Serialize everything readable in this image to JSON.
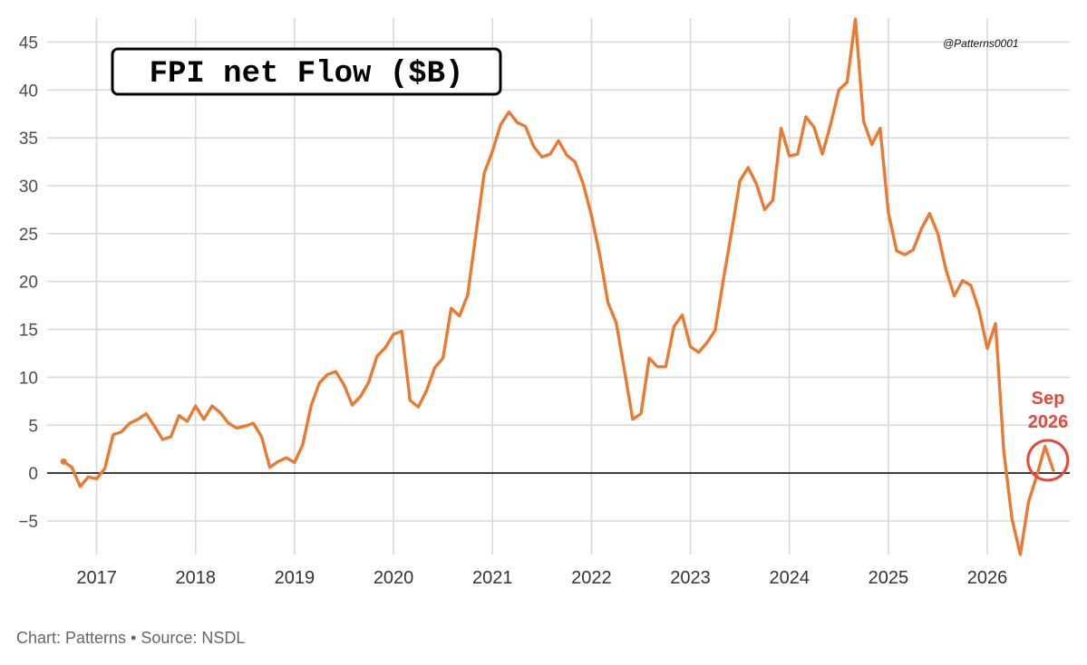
{
  "chart_data": {
    "type": "line",
    "title": "FPI net Flow ($B)",
    "watermark": "@Patterns0001",
    "footer": "Chart: Patterns • Source: NSDL",
    "annotation": {
      "line1": "Sep",
      "line2": "2026"
    },
    "xlabel": "",
    "ylabel": "",
    "x_tick_labels": [
      "2017",
      "2018",
      "2019",
      "2020",
      "2021",
      "2022",
      "2023",
      "2024",
      "2025",
      "2026"
    ],
    "y_ticks": [
      -5,
      0,
      5,
      10,
      15,
      20,
      25,
      30,
      35,
      40,
      45
    ],
    "ylim": [
      -8.5,
      47.5
    ],
    "xlim": [
      "2016-07",
      "2026-11"
    ],
    "grid": true,
    "colors": {
      "line": "#ea7a32",
      "annotation": "#e8473e",
      "grid": "#d9d9d9",
      "zero_line": "#222222"
    },
    "x": [
      "2016-09",
      "2016-10",
      "2016-11",
      "2016-12",
      "2017-01",
      "2017-02",
      "2017-03",
      "2017-04",
      "2017-05",
      "2017-06",
      "2017-07",
      "2017-08",
      "2017-09",
      "2017-10",
      "2017-11",
      "2017-12",
      "2018-01",
      "2018-02",
      "2018-03",
      "2018-04",
      "2018-05",
      "2018-06",
      "2018-07",
      "2018-08",
      "2018-09",
      "2018-10",
      "2018-11",
      "2018-12",
      "2019-01",
      "2019-02",
      "2019-03",
      "2019-04",
      "2019-05",
      "2019-06",
      "2019-07",
      "2019-08",
      "2019-09",
      "2019-10",
      "2019-11",
      "2019-12",
      "2020-01",
      "2020-02",
      "2020-03",
      "2020-04",
      "2020-05",
      "2020-06",
      "2020-07",
      "2020-08",
      "2020-09",
      "2020-10",
      "2020-11",
      "2020-12",
      "2021-01",
      "2021-02",
      "2021-03",
      "2021-04",
      "2021-05",
      "2021-06",
      "2021-07",
      "2021-08",
      "2021-09",
      "2021-10",
      "2021-11",
      "2021-12",
      "2022-01",
      "2022-02",
      "2022-03",
      "2022-04",
      "2022-05",
      "2022-06",
      "2022-07",
      "2022-08",
      "2022-09",
      "2022-10",
      "2022-11",
      "2022-12",
      "2023-01",
      "2023-02",
      "2023-03",
      "2023-04",
      "2023-05",
      "2023-06",
      "2023-07",
      "2023-08",
      "2023-09",
      "2023-10",
      "2023-11",
      "2023-12",
      "2024-01",
      "2024-02",
      "2024-03",
      "2024-04",
      "2024-05",
      "2024-06",
      "2024-07",
      "2024-08",
      "2024-09",
      "2024-10",
      "2024-11",
      "2024-12",
      "2025-01",
      "2025-02",
      "2025-03",
      "2025-04",
      "2025-05",
      "2025-06",
      "2025-07",
      "2025-08",
      "2025-09",
      "2025-10",
      "2025-11",
      "2025-12",
      "2026-01",
      "2026-02",
      "2026-03",
      "2026-04",
      "2026-05",
      "2026-06",
      "2026-07",
      "2026-08",
      "2026-09"
    ],
    "series": [
      {
        "values": [
          1.2,
          0.6,
          -1.4,
          -0.4,
          -0.6,
          0.5,
          4.0,
          4.3,
          5.2,
          5.6,
          6.2,
          4.9,
          3.5,
          3.8,
          6.0,
          5.4,
          7.0,
          5.6,
          7.0,
          6.3,
          5.2,
          4.7,
          4.9,
          5.2,
          3.8,
          0.6,
          1.2,
          1.6,
          1.1,
          3.0,
          7.0,
          9.4,
          10.3,
          10.6,
          9.2,
          7.1,
          8.0,
          9.5,
          12.2,
          13.1,
          14.5,
          14.8,
          7.6,
          6.9,
          8.6,
          11.0,
          12.0,
          17.2,
          16.4,
          18.6,
          25.0,
          31.3,
          33.6,
          36.4,
          37.7,
          36.6,
          36.2,
          34.1,
          33.0,
          33.3,
          34.7,
          33.2,
          32.5,
          30.2,
          26.9,
          22.8,
          17.8,
          15.7,
          10.7,
          5.6,
          6.2,
          12.0,
          11.1,
          11.1,
          15.3,
          16.5,
          13.2,
          12.6,
          13.6,
          14.9,
          20.2,
          25.2,
          30.5,
          31.9,
          30.2,
          27.5,
          28.5,
          36.0,
          33.1,
          33.3,
          37.2,
          36.1,
          33.3,
          36.4,
          40.0,
          40.8,
          47.4,
          36.7,
          34.3,
          36.0,
          27.2,
          23.2,
          22.8,
          23.3,
          25.5,
          27.1,
          25.0,
          21.2,
          18.5,
          20.1,
          19.6,
          17.0,
          13.0,
          15.6,
          2.3,
          -4.8,
          -8.5,
          -3.0,
          -0.3,
          2.8,
          0.3
        ]
      }
    ]
  }
}
